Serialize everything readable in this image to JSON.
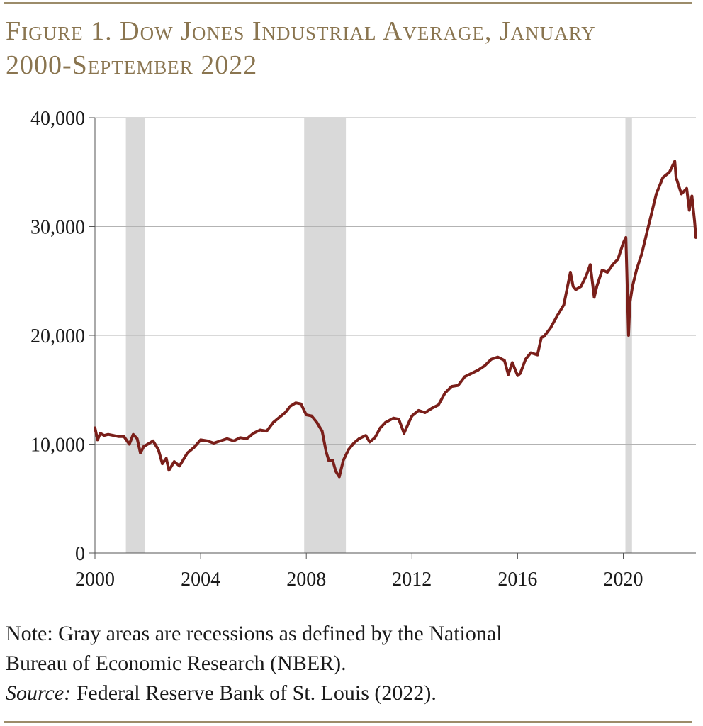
{
  "title_line1": "Figure 1. Dow Jones Industrial Average, January",
  "title_line2": "2000-September 2022",
  "note_line1": "Note: Gray areas are recessions as defined by the National",
  "note_line2": "Bureau of Economic Research (NBER).",
  "source_label": "Source:",
  "source_text": " Federal Reserve Bank of St. Louis (2022).",
  "colors": {
    "line": "#7a1f1a",
    "recession": "#d9d9d9",
    "title": "#8a7550",
    "grid": "#b3b3b3"
  },
  "chart_data": {
    "type": "line",
    "title": "Figure 1. Dow Jones Industrial Average, January 2000-September 2022",
    "xlabel": "",
    "ylabel": "",
    "xlim": [
      2000,
      2022.75
    ],
    "ylim": [
      0,
      40000
    ],
    "x_ticks": [
      "2000",
      "2004",
      "2008",
      "2012",
      "2016",
      "2020"
    ],
    "y_ticks": [
      "0",
      "10,000",
      "20,000",
      "30,000",
      "40,000"
    ],
    "grid": "horizontal",
    "recessions": [
      [
        2001.17,
        2001.88
      ],
      [
        2007.92,
        2009.5
      ],
      [
        2020.08,
        2020.33
      ]
    ],
    "series": [
      {
        "x": [
          2000.0,
          2000.1,
          2000.2,
          2000.35,
          2000.5,
          2000.7,
          2000.9,
          2001.1,
          2001.3,
          2001.45,
          2001.6,
          2001.72,
          2001.85,
          2002.0,
          2002.2,
          2002.4,
          2002.55,
          2002.7,
          2002.8,
          2003.0,
          2003.2,
          2003.5,
          2003.75,
          2004.0,
          2004.25,
          2004.5,
          2004.75,
          2005.0,
          2005.25,
          2005.5,
          2005.75,
          2006.0,
          2006.25,
          2006.5,
          2006.75,
          2007.0,
          2007.2,
          2007.4,
          2007.6,
          2007.8,
          2008.0,
          2008.2,
          2008.4,
          2008.6,
          2008.75,
          2008.85,
          2009.0,
          2009.12,
          2009.25,
          2009.4,
          2009.6,
          2009.8,
          2010.0,
          2010.25,
          2010.4,
          2010.6,
          2010.8,
          2011.0,
          2011.3,
          2011.5,
          2011.7,
          2011.9,
          2012.0,
          2012.25,
          2012.5,
          2012.75,
          2013.0,
          2013.25,
          2013.5,
          2013.75,
          2014.0,
          2014.25,
          2014.5,
          2014.75,
          2015.0,
          2015.25,
          2015.5,
          2015.65,
          2015.8,
          2016.0,
          2016.1,
          2016.3,
          2016.5,
          2016.75,
          2016.9,
          2017.0,
          2017.25,
          2017.5,
          2017.75,
          2018.0,
          2018.1,
          2018.2,
          2018.4,
          2018.6,
          2018.75,
          2018.9,
          2019.0,
          2019.2,
          2019.4,
          2019.6,
          2019.8,
          2020.0,
          2020.1,
          2020.2,
          2020.25,
          2020.35,
          2020.5,
          2020.7,
          2020.9,
          2021.0,
          2021.25,
          2021.5,
          2021.75,
          2021.95,
          2022.0,
          2022.2,
          2022.4,
          2022.5,
          2022.6,
          2022.7,
          2022.75
        ],
        "y": [
          11500,
          10400,
          11000,
          10800,
          10900,
          10800,
          10700,
          10700,
          10000,
          10900,
          10500,
          9200,
          9800,
          10000,
          10300,
          9500,
          8200,
          8700,
          7600,
          8400,
          8000,
          9200,
          9700,
          10400,
          10300,
          10100,
          10300,
          10500,
          10300,
          10600,
          10500,
          11000,
          11300,
          11200,
          12000,
          12500,
          12900,
          13500,
          13800,
          13700,
          12700,
          12600,
          12000,
          11200,
          9300,
          8500,
          8500,
          7500,
          7000,
          8500,
          9500,
          10100,
          10500,
          10800,
          10200,
          10600,
          11500,
          12000,
          12400,
          12300,
          11000,
          12100,
          12600,
          13100,
          12900,
          13300,
          13600,
          14700,
          15300,
          15400,
          16200,
          16500,
          16800,
          17200,
          17800,
          18000,
          17700,
          16400,
          17500,
          16300,
          16500,
          17800,
          18400,
          18200,
          19800,
          19900,
          20700,
          21800,
          22800,
          25800,
          24500,
          24200,
          24500,
          25500,
          26500,
          23500,
          24500,
          26000,
          25800,
          26500,
          27000,
          28500,
          29000,
          20000,
          23000,
          24500,
          26000,
          27500,
          29500,
          30500,
          33000,
          34500,
          35000,
          36000,
          34500,
          33000,
          33500,
          31500,
          32800,
          30500,
          29000
        ]
      }
    ]
  }
}
